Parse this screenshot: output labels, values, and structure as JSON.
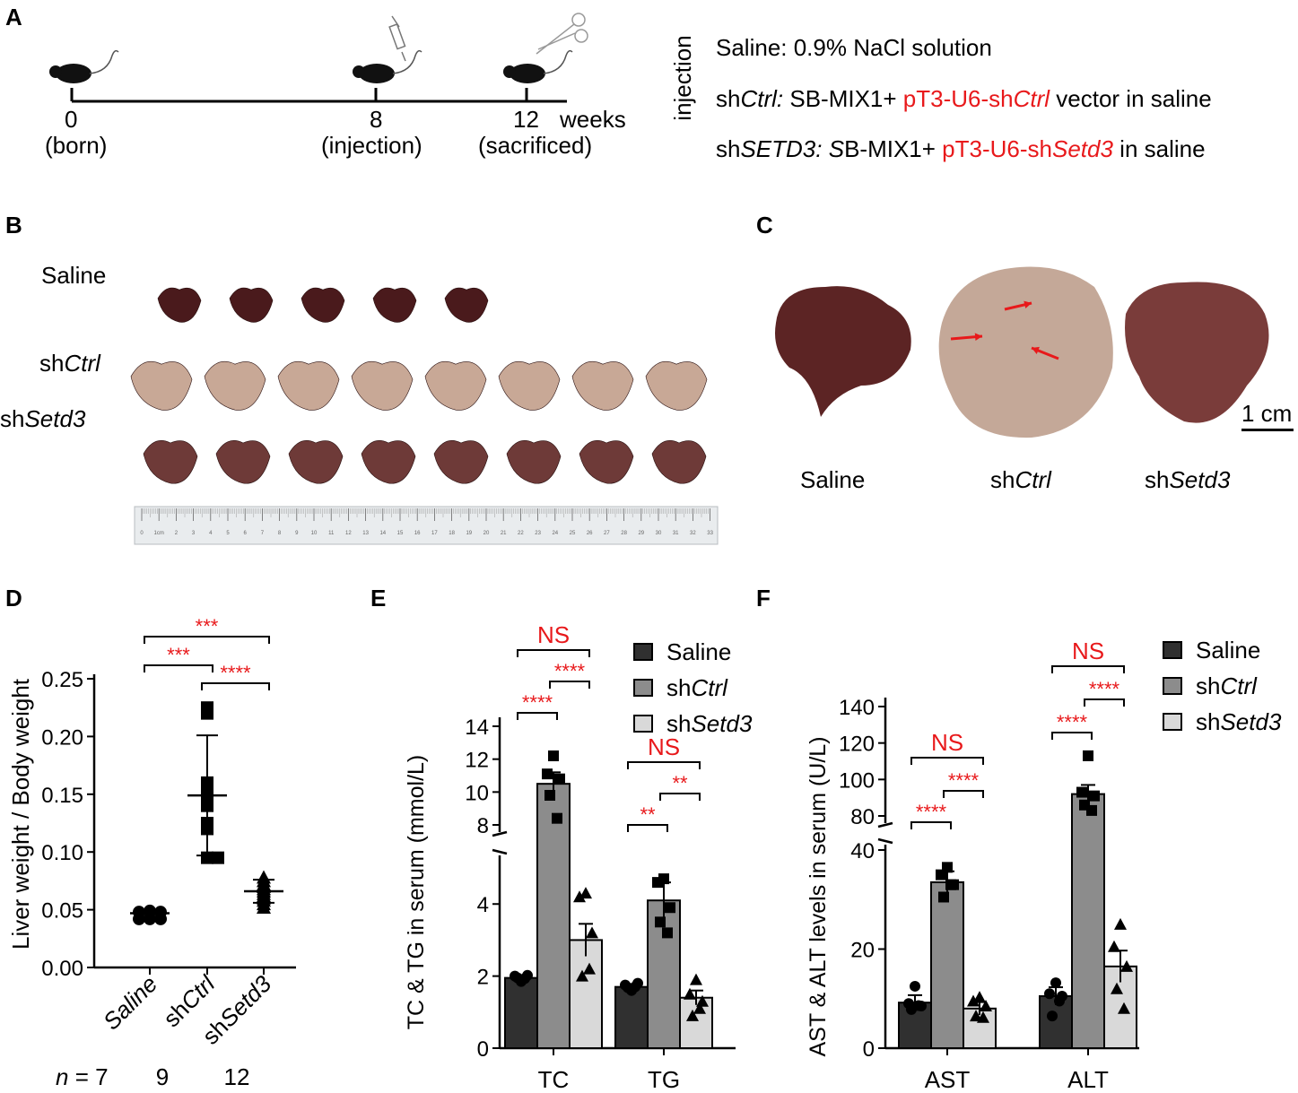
{
  "panels": {
    "A": "A",
    "B": "B",
    "C": "C",
    "D": "D",
    "E": "E",
    "F": "F"
  },
  "timeline": {
    "ticks": [
      {
        "value": "0",
        "note": "(born)"
      },
      {
        "value": "8",
        "note": "(injection)"
      },
      {
        "value": "12",
        "note": "(sacrificed)"
      }
    ],
    "unit": "weeks",
    "side_label": "injection",
    "legend": [
      {
        "prefix": "Saline: 0.9% NaCl solution",
        "italic": "",
        "mid": "",
        "red": "",
        "red_italic": "",
        "suffix": ""
      },
      {
        "prefix": "sh",
        "italic": "Ctrl:",
        "mid": " SB-MIX1+ ",
        "red": "pT3-U6-sh",
        "red_italic": "Ctrl",
        "suffix": " vector in saline"
      },
      {
        "prefix": "sh",
        "italic": "SETD3: S",
        "mid": "B-MIX1+ ",
        "red": "pT3-U6-sh",
        "red_italic": "Setd3",
        "suffix": " in saline"
      }
    ]
  },
  "panelB": {
    "rows": [
      {
        "prefix": "Saline",
        "italic": "",
        "count": 5,
        "color": "#4a1a1c"
      },
      {
        "prefix": "sh",
        "italic": "Ctrl",
        "count": 8,
        "color": "#c8a896"
      },
      {
        "prefix": "sh",
        "italic": "Setd3",
        "count": 8,
        "color": "#6e3a38"
      }
    ],
    "ruler_numbers": [
      "0",
      "1cm",
      "2",
      "3",
      "4",
      "5",
      "6",
      "7",
      "8",
      "9",
      "10",
      "11",
      "12",
      "13",
      "14",
      "15",
      "16",
      "17",
      "18",
      "19",
      "20",
      "21",
      "22",
      "23",
      "24",
      "25",
      "26",
      "27",
      "28",
      "29",
      "30",
      "31",
      "32",
      "33"
    ]
  },
  "panelC": {
    "labels": [
      {
        "prefix": "Saline",
        "italic": ""
      },
      {
        "prefix": "sh",
        "italic": "Ctrl"
      },
      {
        "prefix": "sh",
        "italic": "Setd3"
      }
    ],
    "scale_bar": "1 cm"
  },
  "chart_data": [
    {
      "id": "D",
      "type": "scatter",
      "ylabel": "Liver weight / Body weight",
      "ylim": [
        0,
        0.25
      ],
      "yticks": [
        "0.00",
        "0.05",
        "0.10",
        "0.15",
        "0.20",
        "0.25"
      ],
      "categories": [
        {
          "prefix": "",
          "italic": "Saline"
        },
        {
          "prefix": "sh",
          "italic": "Ctrl"
        },
        {
          "prefix": "sh",
          "italic": "Setd3"
        }
      ],
      "n_label": "n",
      "n_values": [
        "= 7",
        "9",
        "12"
      ],
      "groups": [
        {
          "name": "Saline",
          "marker": "circle",
          "mean": 0.047,
          "sd": 0.003,
          "values": [
            0.042,
            0.042,
            0.042,
            0.048,
            0.048,
            0.048,
            0.049
          ]
        },
        {
          "name": "shCtrl",
          "marker": "square",
          "mean": 0.149,
          "sd": 0.052,
          "values": [
            0.225,
            0.22,
            0.16,
            0.15,
            0.14,
            0.125,
            0.12,
            0.095,
            0.095
          ]
        },
        {
          "name": "shSetd3",
          "marker": "triangle",
          "mean": 0.066,
          "sd": 0.01,
          "values": [
            0.078,
            0.075,
            0.072,
            0.07,
            0.068,
            0.066,
            0.064,
            0.062,
            0.06,
            0.058,
            0.055,
            0.052
          ]
        }
      ],
      "significance": [
        {
          "from": 0,
          "to": 2,
          "label": "***"
        },
        {
          "from": 0,
          "to": 1,
          "label": "***"
        },
        {
          "from": 1,
          "to": 2,
          "label": "****"
        }
      ]
    },
    {
      "id": "E",
      "type": "bar",
      "ylabel": "TC & TG in serum (mmol/L)",
      "categories": [
        "TC",
        "TG"
      ],
      "yticks_low": [
        "0",
        "2",
        "4"
      ],
      "yticks_high": [
        "8",
        "10",
        "12",
        "14"
      ],
      "series": [
        {
          "name": "Saline",
          "italic": "",
          "color": "#303030",
          "values": [
            1.95,
            1.7
          ],
          "sem": [
            0.06,
            0.07
          ],
          "points": [
            [
              1.85,
              2.0,
              2.02,
              1.95,
              1.93
            ],
            [
              1.6,
              1.75,
              1.8,
              1.68,
              1.7
            ]
          ]
        },
        {
          "name": "sh",
          "italic": "Ctrl",
          "color": "#8c8c8c",
          "values": [
            10.5,
            4.1
          ],
          "sem": [
            0.7,
            0.5
          ],
          "points": [
            [
              12.2,
              11.1,
              10.8,
              9.8,
              8.4
            ],
            [
              4.7,
              4.6,
              3.9,
              3.5,
              3.2
            ]
          ]
        },
        {
          "name": "sh",
          "italic": "Setd3",
          "color": "#d9d9d9",
          "values": [
            3.0,
            1.4
          ],
          "sem": [
            0.45,
            0.2
          ],
          "points": [
            [
              4.3,
              4.2,
              3.2,
              2.0,
              2.2
            ],
            [
              1.9,
              1.5,
              1.3,
              0.9,
              1.1
            ]
          ]
        }
      ],
      "significance": [
        {
          "cat": 0,
          "from": 0,
          "to": 2,
          "label": "NS"
        },
        {
          "cat": 0,
          "from": 1,
          "to": 2,
          "label": "****"
        },
        {
          "cat": 0,
          "from": 0,
          "to": 1,
          "label": "****"
        },
        {
          "cat": 1,
          "from": 0,
          "to": 2,
          "label": "NS"
        },
        {
          "cat": 1,
          "from": 1,
          "to": 2,
          "label": "**"
        },
        {
          "cat": 1,
          "from": 0,
          "to": 1,
          "label": "**"
        }
      ]
    },
    {
      "id": "F",
      "type": "bar",
      "ylabel": "AST & ALT levels in serum (U/L)",
      "categories": [
        "AST",
        "ALT"
      ],
      "yticks_low": [
        "0",
        "20",
        "40"
      ],
      "yticks_high": [
        "80",
        "100",
        "120",
        "140"
      ],
      "series": [
        {
          "name": "Saline",
          "italic": "",
          "color": "#303030",
          "values": [
            9.2,
            10.5
          ],
          "sem": [
            1.5,
            1.8
          ],
          "points": [
            [
              12.5,
              9.0,
              8.5,
              7.8,
              8.6
            ],
            [
              13.2,
              11.0,
              10.5,
              6.5,
              9.5
            ]
          ]
        },
        {
          "name": "sh",
          "italic": "Ctrl",
          "color": "#8c8c8c",
          "values": [
            33.5,
            92
          ],
          "sem": [
            2.2,
            5
          ],
          "points": [
            [
              36.5,
              35.0,
              33.0,
              30.5,
              33.0
            ],
            [
              113,
              93,
              91,
              86,
              83
            ]
          ]
        },
        {
          "name": "sh",
          "italic": "Setd3",
          "color": "#d9d9d9",
          "values": [
            8.0,
            16.5
          ],
          "sem": [
            1.3,
            3.2
          ],
          "points": [
            [
              10.3,
              9.5,
              8.5,
              6.5,
              6.2
            ],
            [
              25,
              20.5,
              16.5,
              12.0,
              8.0
            ]
          ]
        }
      ],
      "significance": [
        {
          "cat": 0,
          "from": 0,
          "to": 2,
          "label": "NS"
        },
        {
          "cat": 0,
          "from": 1,
          "to": 2,
          "label": "****"
        },
        {
          "cat": 0,
          "from": 0,
          "to": 1,
          "label": "****"
        },
        {
          "cat": 1,
          "from": 0,
          "to": 2,
          "label": "NS"
        },
        {
          "cat": 1,
          "from": 1,
          "to": 2,
          "label": "****"
        },
        {
          "cat": 1,
          "from": 0,
          "to": 1,
          "label": "****"
        }
      ]
    }
  ]
}
